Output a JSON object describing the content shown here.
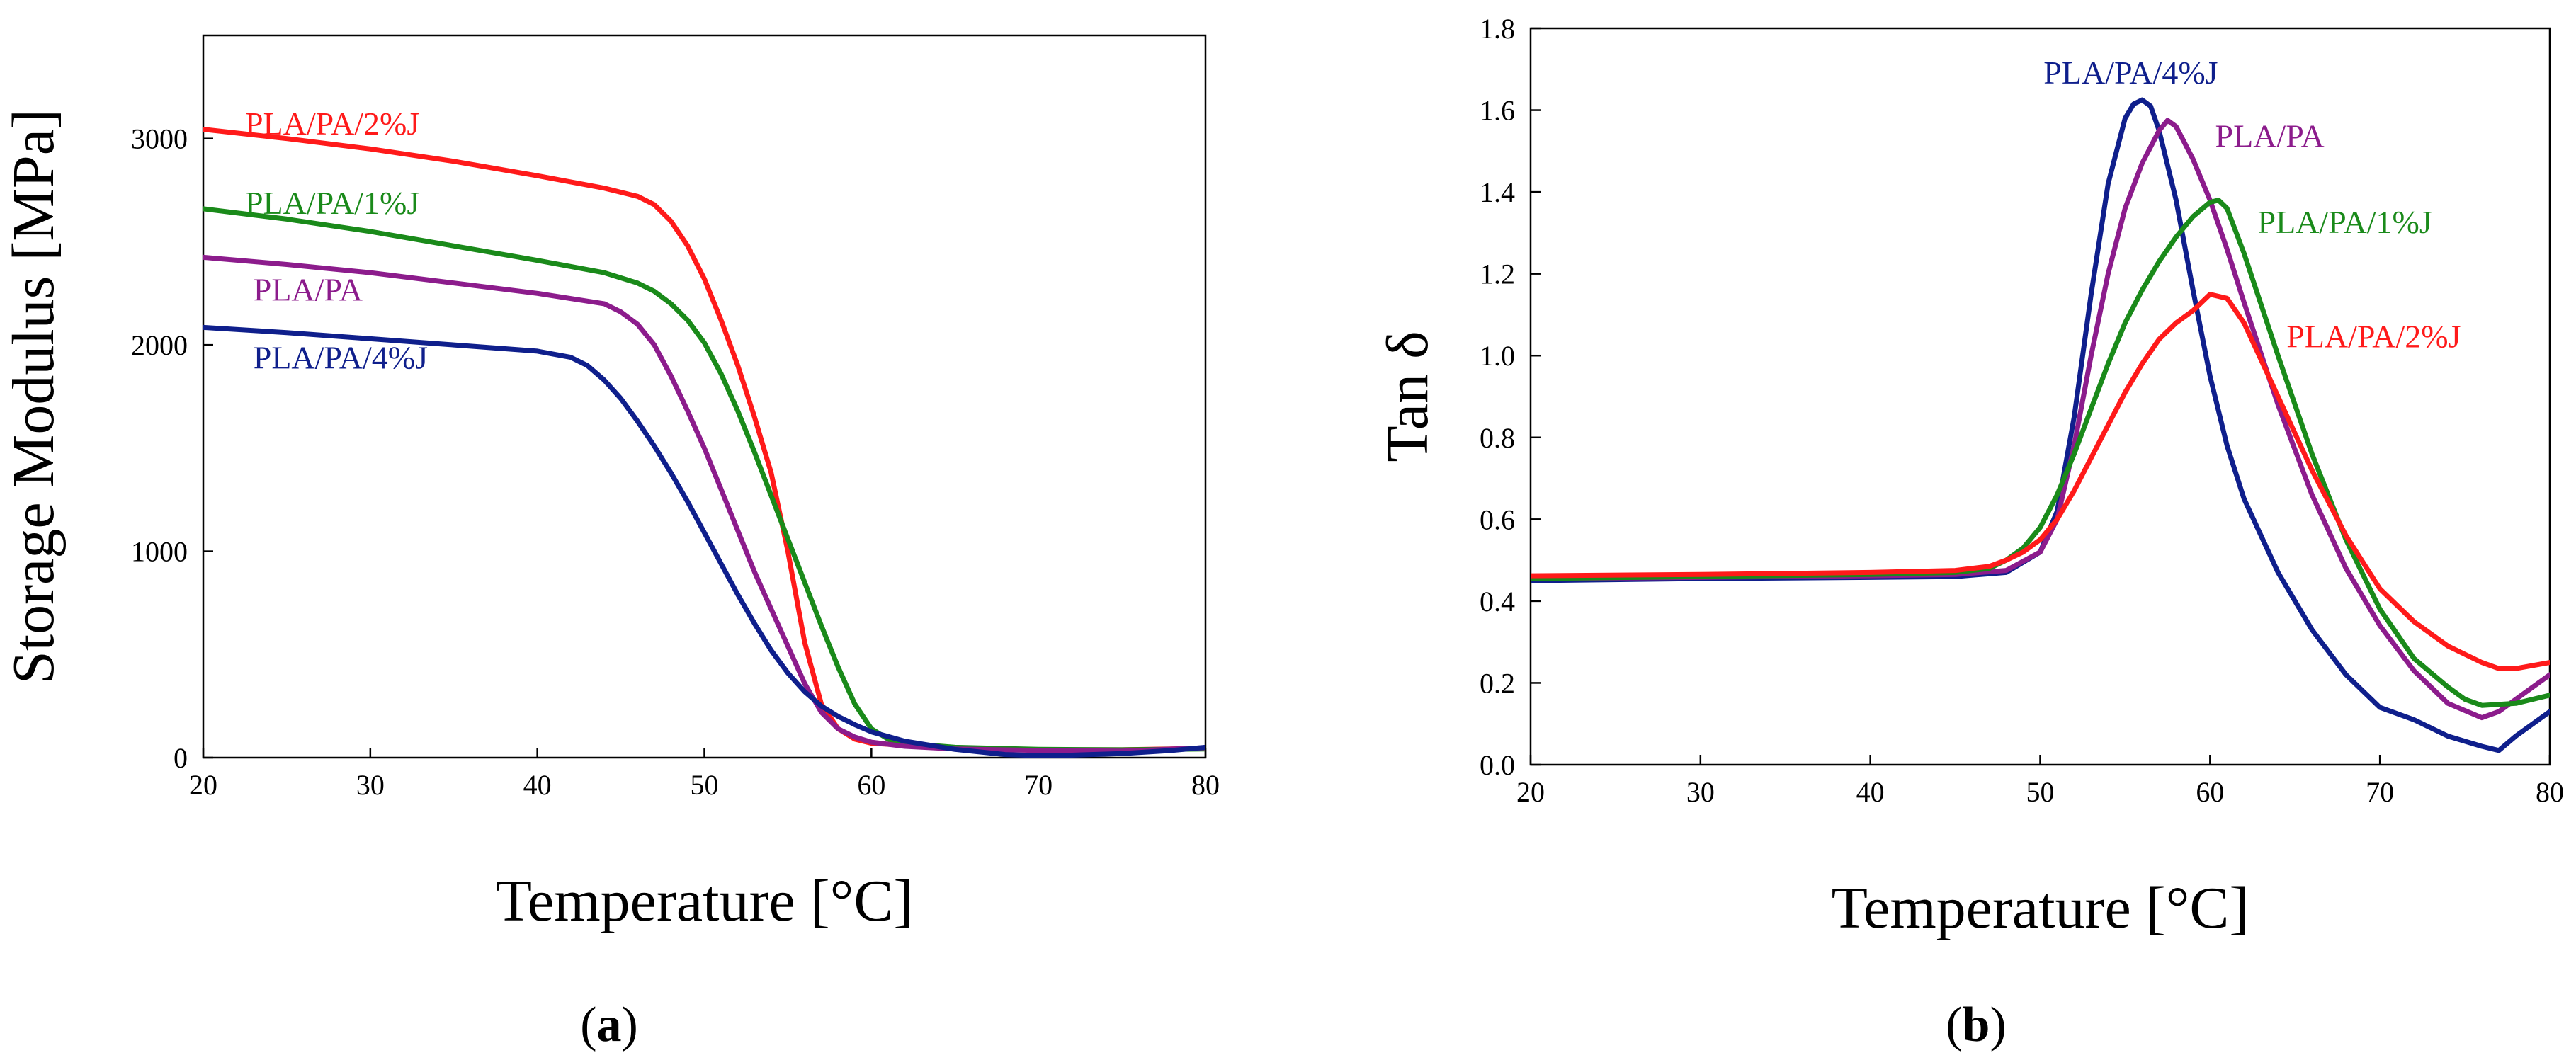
{
  "chart_data": [
    {
      "type": "line",
      "panel_label": "(a)",
      "panel_letter": "a",
      "xlabel": "Temperature [°C]",
      "ylabel": "Storage Modulus [MPa]",
      "xlim": [
        20,
        80
      ],
      "ylim": [
        0,
        3500
      ],
      "xticks": [
        20,
        30,
        40,
        50,
        60,
        70,
        80
      ],
      "yticks": [
        0,
        1000,
        2000,
        3000
      ],
      "series": [
        {
          "name": "PLA/PA/2%J",
          "color": "#ff1a1a",
          "label_pos": [
            22.5,
            3020
          ],
          "x": [
            20,
            25,
            30,
            35,
            40,
            44,
            46,
            47,
            48,
            49,
            50,
            51,
            52,
            53,
            54,
            55,
            56,
            57,
            58,
            59,
            60,
            62,
            65,
            70,
            75,
            80
          ],
          "y": [
            3045,
            3000,
            2950,
            2890,
            2820,
            2760,
            2720,
            2680,
            2600,
            2480,
            2320,
            2120,
            1900,
            1650,
            1380,
            1000,
            560,
            260,
            140,
            90,
            70,
            60,
            45,
            38,
            38,
            45
          ]
        },
        {
          "name": "PLA/PA/1%J",
          "color": "#1a8a1a",
          "label_pos": [
            22.5,
            2635
          ],
          "x": [
            20,
            25,
            30,
            35,
            40,
            44,
            46,
            47,
            48,
            49,
            50,
            51,
            52,
            53,
            54,
            55,
            56,
            57,
            58,
            59,
            60,
            61,
            62,
            65,
            70,
            75,
            80
          ],
          "y": [
            2660,
            2610,
            2550,
            2480,
            2410,
            2350,
            2300,
            2260,
            2200,
            2120,
            2010,
            1860,
            1680,
            1480,
            1270,
            1060,
            850,
            640,
            440,
            260,
            140,
            90,
            70,
            50,
            40,
            38,
            42
          ]
        },
        {
          "name": "PLA/PA",
          "color": "#8c1c8c",
          "label_pos": [
            23,
            2215
          ],
          "x": [
            20,
            25,
            30,
            35,
            40,
            44,
            45,
            46,
            47,
            48,
            49,
            50,
            51,
            52,
            53,
            54,
            55,
            56,
            57,
            58,
            59,
            60,
            62,
            65,
            70,
            75,
            80
          ],
          "y": [
            2425,
            2390,
            2350,
            2300,
            2250,
            2200,
            2160,
            2100,
            2000,
            1850,
            1680,
            1500,
            1300,
            1100,
            900,
            720,
            540,
            360,
            220,
            140,
            100,
            75,
            55,
            42,
            35,
            32,
            48
          ]
        },
        {
          "name": "PLA/PA/4%J",
          "color": "#0f1f8c",
          "label_pos": [
            23,
            1885
          ],
          "x": [
            20,
            25,
            30,
            35,
            40,
            42,
            43,
            44,
            45,
            46,
            47,
            48,
            49,
            50,
            51,
            52,
            53,
            54,
            55,
            56,
            57,
            58,
            59,
            60,
            62,
            65,
            68,
            70,
            72,
            75,
            78,
            80
          ],
          "y": [
            2085,
            2060,
            2030,
            2000,
            1970,
            1940,
            1900,
            1830,
            1740,
            1630,
            1510,
            1380,
            1240,
            1090,
            940,
            790,
            650,
            520,
            410,
            320,
            250,
            200,
            160,
            125,
            80,
            40,
            15,
            10,
            12,
            20,
            35,
            50
          ]
        }
      ]
    },
    {
      "type": "line",
      "panel_label": "(b)",
      "panel_letter": "b",
      "xlabel": "Temperature [°C]",
      "ylabel": "Tan δ",
      "xlim": [
        20,
        80
      ],
      "ylim": [
        0,
        1.8
      ],
      "xticks": [
        20,
        30,
        40,
        50,
        60,
        70,
        80
      ],
      "yticks": [
        "0.0",
        "0.2",
        "0.4",
        "0.6",
        "0.8",
        "1.0",
        "1.2",
        "1.4",
        "1.6",
        "1.8"
      ],
      "series": [
        {
          "name": "PLA/PA/4%J",
          "color": "#0f1f8c",
          "label_pos": [
            50.2,
            1.665
          ],
          "x": [
            20,
            30,
            40,
            45,
            48,
            50,
            51,
            52,
            53,
            54,
            55,
            55.5,
            56,
            56.5,
            57,
            58,
            59,
            60,
            61,
            62,
            64,
            66,
            68,
            70,
            72,
            74,
            76,
            77,
            78,
            80
          ],
          "y": [
            0.45,
            0.455,
            0.458,
            0.46,
            0.47,
            0.52,
            0.62,
            0.85,
            1.15,
            1.42,
            1.58,
            1.615,
            1.625,
            1.61,
            1.55,
            1.38,
            1.16,
            0.95,
            0.78,
            0.65,
            0.47,
            0.33,
            0.22,
            0.14,
            0.11,
            0.07,
            0.045,
            0.035,
            0.07,
            0.13
          ]
        },
        {
          "name": "PLA/PA",
          "color": "#8c1c8c",
          "label_pos": [
            60.3,
            1.51
          ],
          "x": [
            20,
            30,
            40,
            45,
            48,
            50,
            51,
            52,
            53,
            54,
            55,
            56,
            57,
            57.5,
            58,
            58.5,
            59,
            60,
            61,
            62,
            64,
            66,
            68,
            70,
            72,
            74,
            76,
            77,
            78,
            80
          ],
          "y": [
            0.455,
            0.458,
            0.462,
            0.465,
            0.475,
            0.52,
            0.6,
            0.78,
            1.0,
            1.2,
            1.36,
            1.47,
            1.55,
            1.575,
            1.56,
            1.52,
            1.48,
            1.38,
            1.26,
            1.13,
            0.88,
            0.66,
            0.48,
            0.34,
            0.23,
            0.15,
            0.115,
            0.13,
            0.16,
            0.22
          ]
        },
        {
          "name": "PLA/PA/1%J",
          "color": "#1a8a1a",
          "label_pos": [
            62.8,
            1.3
          ],
          "x": [
            20,
            30,
            40,
            45,
            47,
            48,
            49,
            50,
            51,
            52,
            53,
            54,
            55,
            56,
            57,
            58,
            59,
            60,
            60.5,
            61,
            62,
            64,
            66,
            68,
            70,
            72,
            74,
            75,
            76,
            78,
            80
          ],
          "y": [
            0.455,
            0.46,
            0.465,
            0.47,
            0.48,
            0.5,
            0.53,
            0.58,
            0.66,
            0.76,
            0.87,
            0.98,
            1.08,
            1.16,
            1.23,
            1.29,
            1.34,
            1.375,
            1.38,
            1.36,
            1.25,
            1.0,
            0.76,
            0.55,
            0.38,
            0.26,
            0.19,
            0.16,
            0.145,
            0.15,
            0.17
          ]
        },
        {
          "name": "PLA/PA/2%J",
          "color": "#ff1a1a",
          "label_pos": [
            64.5,
            1.02
          ],
          "x": [
            20,
            30,
            40,
            45,
            47,
            48,
            49,
            50,
            51,
            52,
            53,
            54,
            55,
            56,
            57,
            58,
            59,
            60,
            61,
            62,
            64,
            66,
            68,
            70,
            72,
            74,
            76,
            77,
            78,
            80
          ],
          "y": [
            0.462,
            0.465,
            0.47,
            0.475,
            0.485,
            0.5,
            0.52,
            0.55,
            0.6,
            0.67,
            0.75,
            0.83,
            0.91,
            0.98,
            1.04,
            1.08,
            1.11,
            1.15,
            1.14,
            1.08,
            0.9,
            0.72,
            0.56,
            0.43,
            0.35,
            0.29,
            0.25,
            0.235,
            0.235,
            0.25
          ]
        }
      ]
    }
  ]
}
